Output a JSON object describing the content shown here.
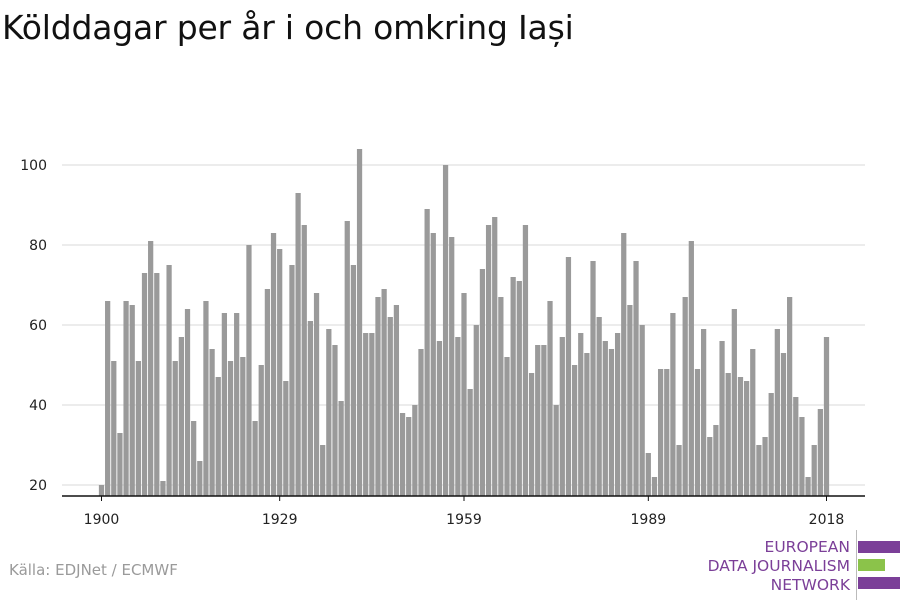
{
  "title": "Kölddagar per år i och omkring Iași",
  "source": "Källa: EDJNet / ECMWF",
  "logo": {
    "lines": [
      "EUROPEAN",
      "DATA JOURNALISM",
      "NETWORK"
    ],
    "colors": [
      "#7b3f98",
      "#8bc34a",
      "#7b3f98"
    ]
  },
  "chart_data": {
    "type": "bar",
    "title": "Kölddagar per år i och omkring Iași",
    "xlabel": "",
    "ylabel": "",
    "bar_color": "#9a9a9a",
    "grid": true,
    "ylim": [
      17,
      104
    ],
    "y_ticks": [
      20,
      40,
      60,
      80,
      100
    ],
    "x_ticks": [
      1900,
      1929,
      1959,
      1989,
      2018
    ],
    "x": [
      1900,
      1901,
      1902,
      1903,
      1904,
      1905,
      1906,
      1907,
      1908,
      1909,
      1910,
      1911,
      1912,
      1913,
      1914,
      1915,
      1916,
      1917,
      1918,
      1919,
      1920,
      1921,
      1922,
      1923,
      1924,
      1925,
      1926,
      1927,
      1928,
      1929,
      1930,
      1931,
      1932,
      1933,
      1934,
      1935,
      1936,
      1937,
      1938,
      1939,
      1940,
      1941,
      1942,
      1943,
      1944,
      1945,
      1946,
      1947,
      1948,
      1949,
      1950,
      1951,
      1952,
      1953,
      1954,
      1955,
      1956,
      1957,
      1958,
      1959,
      1960,
      1961,
      1962,
      1963,
      1964,
      1965,
      1966,
      1967,
      1968,
      1969,
      1970,
      1971,
      1972,
      1973,
      1974,
      1975,
      1976,
      1977,
      1978,
      1979,
      1980,
      1981,
      1982,
      1983,
      1984,
      1985,
      1986,
      1987,
      1988,
      1989,
      1990,
      1991,
      1992,
      1993,
      1994,
      1995,
      1996,
      1997,
      1998,
      1999,
      2000,
      2001,
      2002,
      2003,
      2004,
      2005,
      2006,
      2007,
      2008,
      2009,
      2010,
      2011,
      2012,
      2013,
      2014,
      2015,
      2016,
      2017,
      2018
    ],
    "values": [
      20,
      66,
      51,
      33,
      66,
      65,
      51,
      73,
      81,
      73,
      21,
      75,
      51,
      57,
      64,
      36,
      26,
      66,
      54,
      47,
      63,
      51,
      63,
      52,
      80,
      36,
      50,
      69,
      83,
      79,
      46,
      75,
      93,
      85,
      61,
      68,
      30,
      59,
      55,
      41,
      86,
      75,
      104,
      58,
      58,
      67,
      69,
      62,
      65,
      38,
      37,
      40,
      54,
      89,
      83,
      56,
      100,
      82,
      57,
      68,
      44,
      60,
      74,
      85,
      87,
      67,
      52,
      72,
      71,
      85,
      48,
      55,
      55,
      66,
      40,
      57,
      77,
      50,
      58,
      53,
      76,
      62,
      56,
      54,
      58,
      83,
      65,
      76,
      60,
      28,
      22,
      49,
      49,
      63,
      30,
      67,
      81,
      49,
      59,
      32,
      35,
      56,
      48,
      64,
      47,
      46,
      54,
      30,
      32,
      43,
      59,
      53,
      67,
      42,
      37,
      22,
      30,
      39,
      57
    ]
  }
}
